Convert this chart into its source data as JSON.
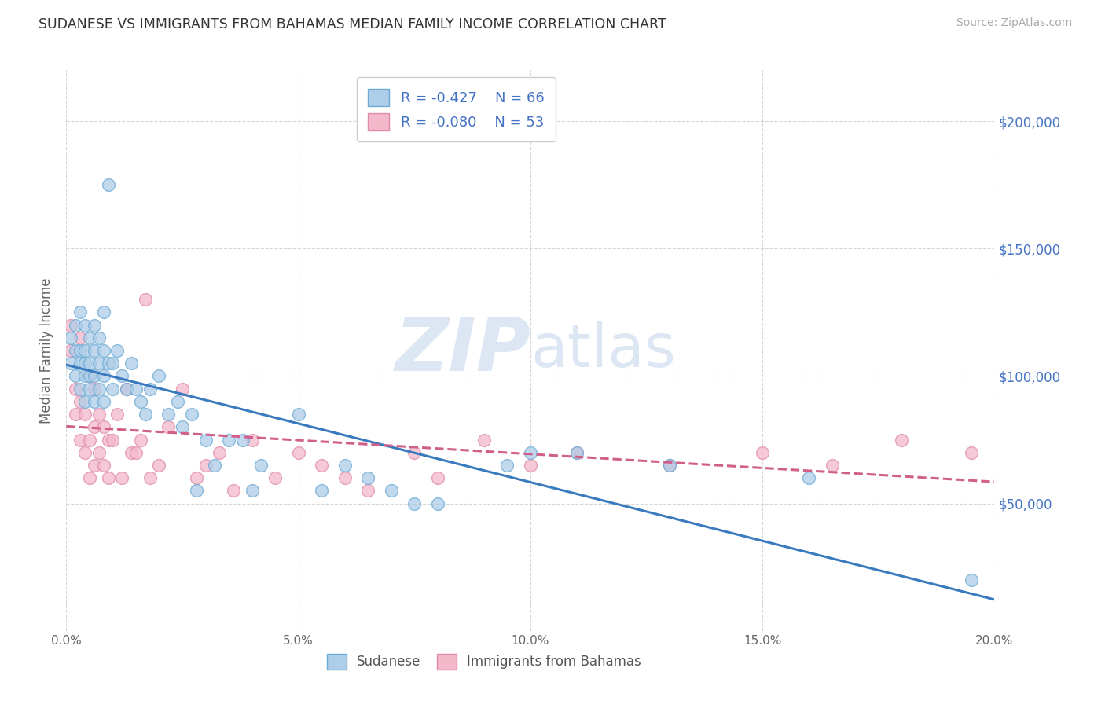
{
  "title": "SUDANESE VS IMMIGRANTS FROM BAHAMAS MEDIAN FAMILY INCOME CORRELATION CHART",
  "source": "Source: ZipAtlas.com",
  "ylabel": "Median Family Income",
  "xlim": [
    0.0,
    0.2
  ],
  "ylim": [
    0,
    220000
  ],
  "yticks": [
    50000,
    100000,
    150000,
    200000
  ],
  "ytick_labels_right": [
    "$50,000",
    "$100,000",
    "$150,000",
    "$200,000"
  ],
  "xticks": [
    0.0,
    0.05,
    0.1,
    0.15,
    0.2
  ],
  "xtick_labels": [
    "0.0%",
    "5.0%",
    "10.0%",
    "15.0%",
    "20.0%"
  ],
  "legend_label1": "R = -0.427    N = 66",
  "legend_label2": "R = -0.080    N = 53",
  "color_blue": "#aecde8",
  "color_pink": "#f4b8cb",
  "edge_blue": "#6aaad4",
  "edge_pink": "#e08aaa",
  "line_blue": "#3a7abf",
  "line_pink": "#d05f8a",
  "label_color": "#4472c4",
  "watermark_color": "#c5d8ec",
  "background": "#ffffff",
  "grid_color": "#cccccc",
  "sudanese_x": [
    0.001,
    0.001,
    0.002,
    0.002,
    0.002,
    0.003,
    0.003,
    0.003,
    0.003,
    0.004,
    0.004,
    0.004,
    0.004,
    0.004,
    0.005,
    0.005,
    0.005,
    0.005,
    0.006,
    0.006,
    0.006,
    0.006,
    0.007,
    0.007,
    0.007,
    0.008,
    0.008,
    0.008,
    0.008,
    0.009,
    0.009,
    0.01,
    0.01,
    0.011,
    0.012,
    0.013,
    0.014,
    0.015,
    0.016,
    0.017,
    0.018,
    0.02,
    0.022,
    0.024,
    0.025,
    0.027,
    0.028,
    0.03,
    0.032,
    0.035,
    0.038,
    0.04,
    0.042,
    0.05,
    0.055,
    0.06,
    0.065,
    0.07,
    0.075,
    0.08,
    0.095,
    0.1,
    0.11,
    0.13,
    0.16,
    0.195
  ],
  "sudanese_y": [
    105000,
    115000,
    100000,
    110000,
    120000,
    95000,
    105000,
    110000,
    125000,
    90000,
    100000,
    110000,
    120000,
    105000,
    95000,
    105000,
    115000,
    100000,
    90000,
    100000,
    110000,
    120000,
    95000,
    105000,
    115000,
    100000,
    110000,
    90000,
    125000,
    175000,
    105000,
    95000,
    105000,
    110000,
    100000,
    95000,
    105000,
    95000,
    90000,
    85000,
    95000,
    100000,
    85000,
    90000,
    80000,
    85000,
    55000,
    75000,
    65000,
    75000,
    75000,
    55000,
    65000,
    85000,
    55000,
    65000,
    60000,
    55000,
    50000,
    50000,
    65000,
    70000,
    70000,
    65000,
    60000,
    20000
  ],
  "bahamas_x": [
    0.001,
    0.001,
    0.002,
    0.002,
    0.003,
    0.003,
    0.003,
    0.004,
    0.004,
    0.005,
    0.005,
    0.005,
    0.006,
    0.006,
    0.006,
    0.007,
    0.007,
    0.008,
    0.008,
    0.009,
    0.009,
    0.01,
    0.011,
    0.012,
    0.013,
    0.014,
    0.015,
    0.016,
    0.017,
    0.018,
    0.02,
    0.022,
    0.025,
    0.028,
    0.03,
    0.033,
    0.036,
    0.04,
    0.045,
    0.05,
    0.055,
    0.06,
    0.065,
    0.075,
    0.08,
    0.09,
    0.1,
    0.11,
    0.13,
    0.15,
    0.165,
    0.18,
    0.195
  ],
  "bahamas_y": [
    110000,
    120000,
    85000,
    95000,
    75000,
    90000,
    115000,
    70000,
    85000,
    60000,
    75000,
    100000,
    65000,
    80000,
    95000,
    70000,
    85000,
    65000,
    80000,
    60000,
    75000,
    75000,
    85000,
    60000,
    95000,
    70000,
    70000,
    75000,
    130000,
    60000,
    65000,
    80000,
    95000,
    60000,
    65000,
    70000,
    55000,
    75000,
    60000,
    70000,
    65000,
    60000,
    55000,
    70000,
    60000,
    75000,
    65000,
    70000,
    65000,
    70000,
    65000,
    75000,
    70000
  ]
}
